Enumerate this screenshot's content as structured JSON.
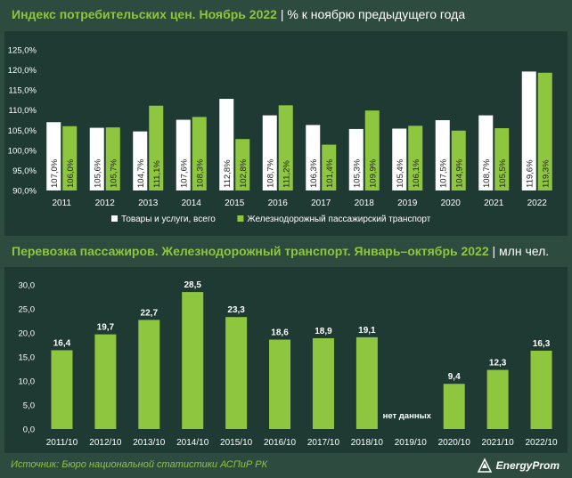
{
  "header1": {
    "title": "Индекс потребительских цен. Ноябрь 2022",
    "subtitle": "| % к ноябрю предыдущего года"
  },
  "header2": {
    "title": "Перевозка пассажиров. Железнодорожный транспорт. Январь–октябрь 2022",
    "subtitle": "| млн чел."
  },
  "footer": {
    "source": "Источник: Бюро национальной статистики АСПиР РК",
    "logo_text": "EnergyProm"
  },
  "colors": {
    "background": "#2d4b3f",
    "panel": "#1e3a32",
    "green": "#8fc63f",
    "white": "#ffffff"
  },
  "chart_data": [
    {
      "type": "bar",
      "categories": [
        "2011",
        "2012",
        "2013",
        "2014",
        "2015",
        "2016",
        "2017",
        "2018",
        "2019",
        "2020",
        "2021",
        "2022"
      ],
      "series": [
        {
          "name": "Товары и услуги, всего",
          "values": [
            107.0,
            105.6,
            104.7,
            107.6,
            112.8,
            108.7,
            106.3,
            105.3,
            105.4,
            107.5,
            108.7,
            119.6
          ],
          "labels": [
            "107,0%",
            "105,6%",
            "104,7%",
            "107,6%",
            "112,8%",
            "108,7%",
            "106,3%",
            "105,3%",
            "105,4%",
            "107,5%",
            "108,7%",
            "119,6%"
          ]
        },
        {
          "name": "Железнодорожный пассажирский транспорт",
          "values": [
            106.0,
            105.7,
            111.1,
            108.3,
            102.8,
            111.2,
            101.4,
            109.9,
            106.1,
            104.9,
            105.5,
            119.3
          ],
          "labels": [
            "106,0%",
            "105,7%",
            "111,1%",
            "108,3%",
            "102,8%",
            "111,2%",
            "101,4%",
            "109,9%",
            "106,1%",
            "104,9%",
            "105,5%",
            "119,3%"
          ]
        }
      ],
      "yticks": [
        "90,0%",
        "95,0%",
        "100,0%",
        "105,0%",
        "110,0%",
        "115,0%",
        "120,0%",
        "125,0%"
      ],
      "ylim": [
        90,
        125
      ],
      "legend_position": "bottom"
    },
    {
      "type": "bar",
      "categories": [
        "2011/10",
        "2012/10",
        "2013/10",
        "2014/10",
        "2015/10",
        "2016/10",
        "2017/10",
        "2018/10",
        "2019/10",
        "2020/10",
        "2021/10",
        "2022/10"
      ],
      "values": [
        16.4,
        19.7,
        22.7,
        28.5,
        23.3,
        18.6,
        18.9,
        19.1,
        null,
        9.4,
        12.3,
        16.3
      ],
      "labels": [
        "16,4",
        "19,7",
        "22,7",
        "28,5",
        "23,3",
        "18,6",
        "18,9",
        "19,1",
        "нет данных",
        "9,4",
        "12,3",
        "16,3"
      ],
      "yticks": [
        "0,0",
        "5,0",
        "10,0",
        "15,0",
        "20,0",
        "25,0",
        "30,0"
      ],
      "ylim": [
        0,
        30
      ]
    }
  ]
}
